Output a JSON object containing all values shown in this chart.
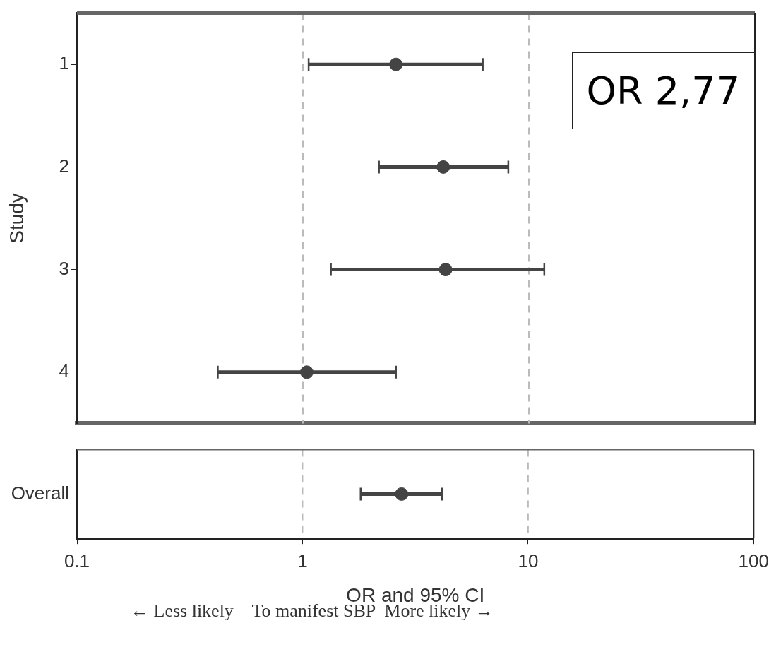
{
  "chart_data": [
    {
      "type": "scatter",
      "orientation": "horizontal",
      "ylabel": "Study",
      "categories": [
        "1",
        "2",
        "3",
        "4"
      ],
      "color": "#444444",
      "values": [
        2.58,
        4.18,
        4.28,
        1.04
      ],
      "errors": [
        [
          1.06,
          6.25
        ],
        [
          2.17,
          8.11
        ],
        [
          1.33,
          11.7
        ],
        [
          0.42,
          2.58
        ]
      ],
      "xlim": [
        0.1,
        100
      ],
      "log": "x",
      "marker": "circle",
      "legend": false,
      "grid": false,
      "tick_labels": "y",
      "ref_lines": [
        {
          "axis": "x",
          "value": 1,
          "line_style": "dashed",
          "color": "#bbbbbb"
        },
        {
          "axis": "x",
          "value": 10,
          "line_style": "dashed",
          "color": "#bbbbbb"
        }
      ],
      "annotations": [
        "OR 2,77"
      ]
    },
    {
      "type": "scatter",
      "orientation": "horizontal",
      "xlabel": "OR and 95% CI",
      "categories": [
        "Overall"
      ],
      "color": "#444444",
      "values": [
        2.75
      ],
      "errors": [
        [
          1.81,
          4.15
        ]
      ],
      "xlim": [
        0.1,
        100
      ],
      "xticks": [
        0.1,
        1,
        10,
        100
      ],
      "log": "x",
      "marker": "circle",
      "legend": false,
      "grid": false,
      "ref_lines": [
        {
          "axis": "x",
          "value": 1,
          "line_style": "dashed",
          "color": "#bbbbbb"
        },
        {
          "axis": "x",
          "value": 10,
          "line_style": "dashed",
          "color": "#bbbbbb"
        }
      ],
      "annotations": [
        "← Less likely    To manifest SBP  More likely →"
      ]
    }
  ]
}
